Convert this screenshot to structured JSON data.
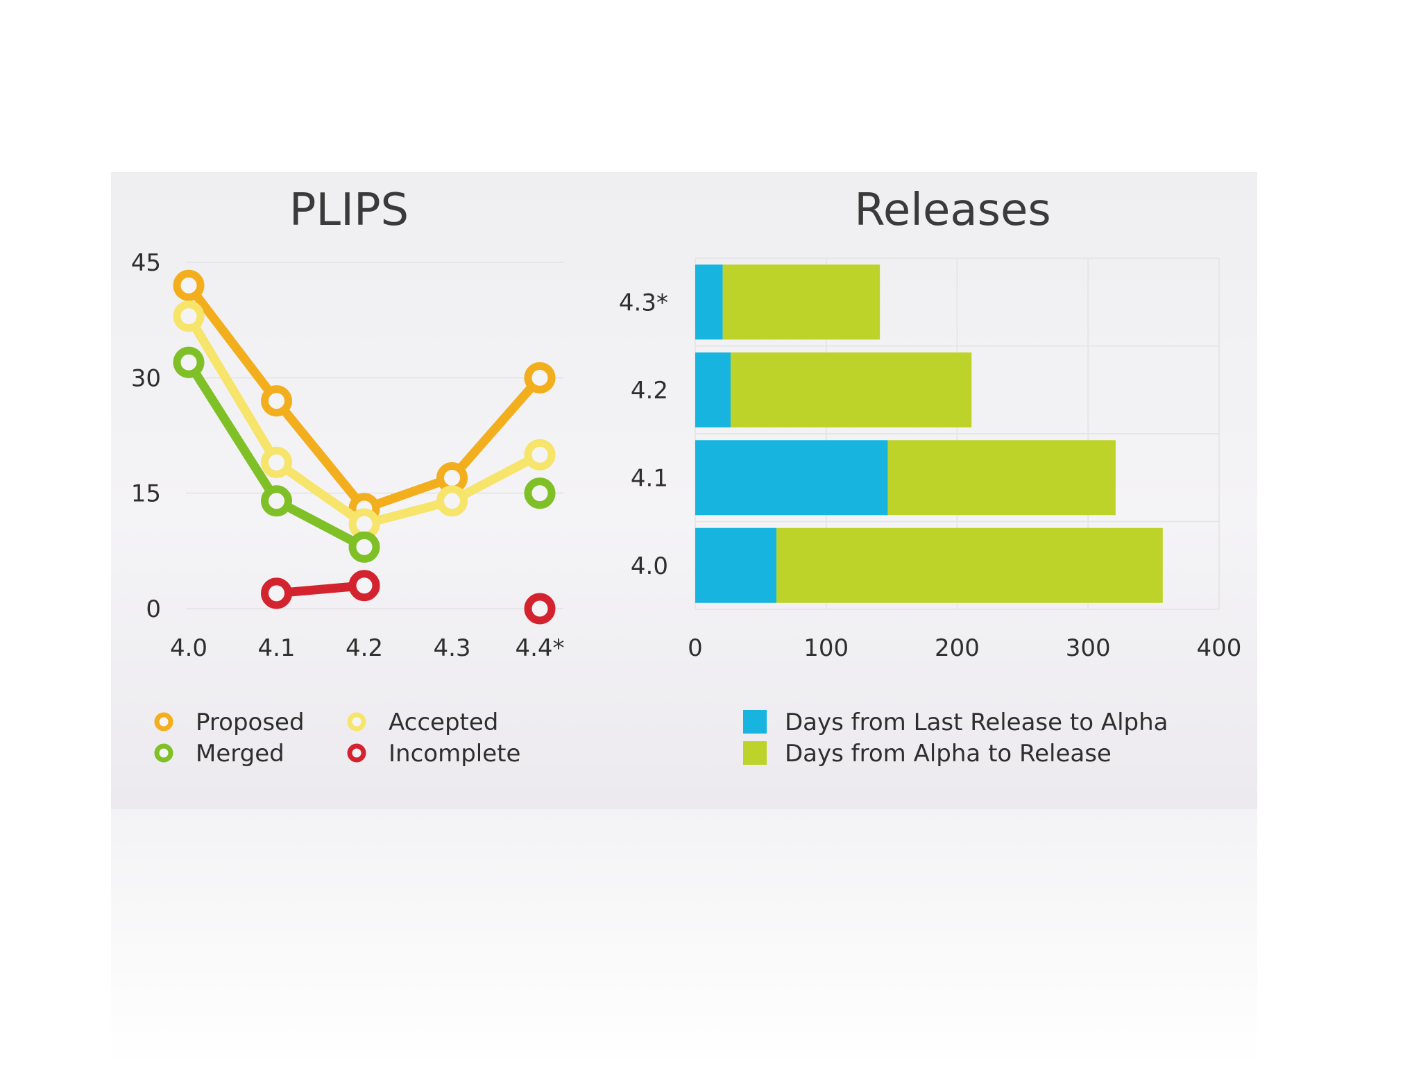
{
  "chart_data": [
    {
      "type": "line",
      "title": "PLIPS",
      "x": [
        "4.0",
        "4.1",
        "4.2",
        "4.3",
        "4.4*"
      ],
      "ylim": [
        0,
        45
      ],
      "yticks": [
        0,
        15,
        30,
        45
      ],
      "series": [
        {
          "name": "Proposed",
          "color": "#f2ae1c",
          "values": [
            42,
            27,
            13,
            17,
            30
          ]
        },
        {
          "name": "Accepted",
          "color": "#f7e46a",
          "values": [
            38,
            19,
            11,
            14,
            20
          ]
        },
        {
          "name": "Merged",
          "color": "#7fc027",
          "values": [
            32,
            14,
            8,
            null,
            15
          ]
        },
        {
          "name": "Incomplete",
          "color": "#d2232e",
          "values": [
            null,
            2,
            3,
            null,
            0
          ]
        }
      ],
      "legend_position": "bottom"
    },
    {
      "type": "bar",
      "orientation": "horizontal",
      "stacked": true,
      "title": "Releases",
      "categories": [
        "4.3*",
        "4.2",
        "4.1",
        "4.0"
      ],
      "xlim": [
        0,
        400
      ],
      "xticks": [
        0,
        100,
        200,
        300,
        400
      ],
      "series": [
        {
          "name": "Days from Last Release to Alpha",
          "color": "#16b4df",
          "values": [
            21,
            27,
            147,
            62
          ]
        },
        {
          "name": "Days from Alpha to Release",
          "color": "#bed32a",
          "values": [
            120,
            184,
            174,
            295
          ]
        }
      ],
      "legend_position": "bottom"
    }
  ]
}
